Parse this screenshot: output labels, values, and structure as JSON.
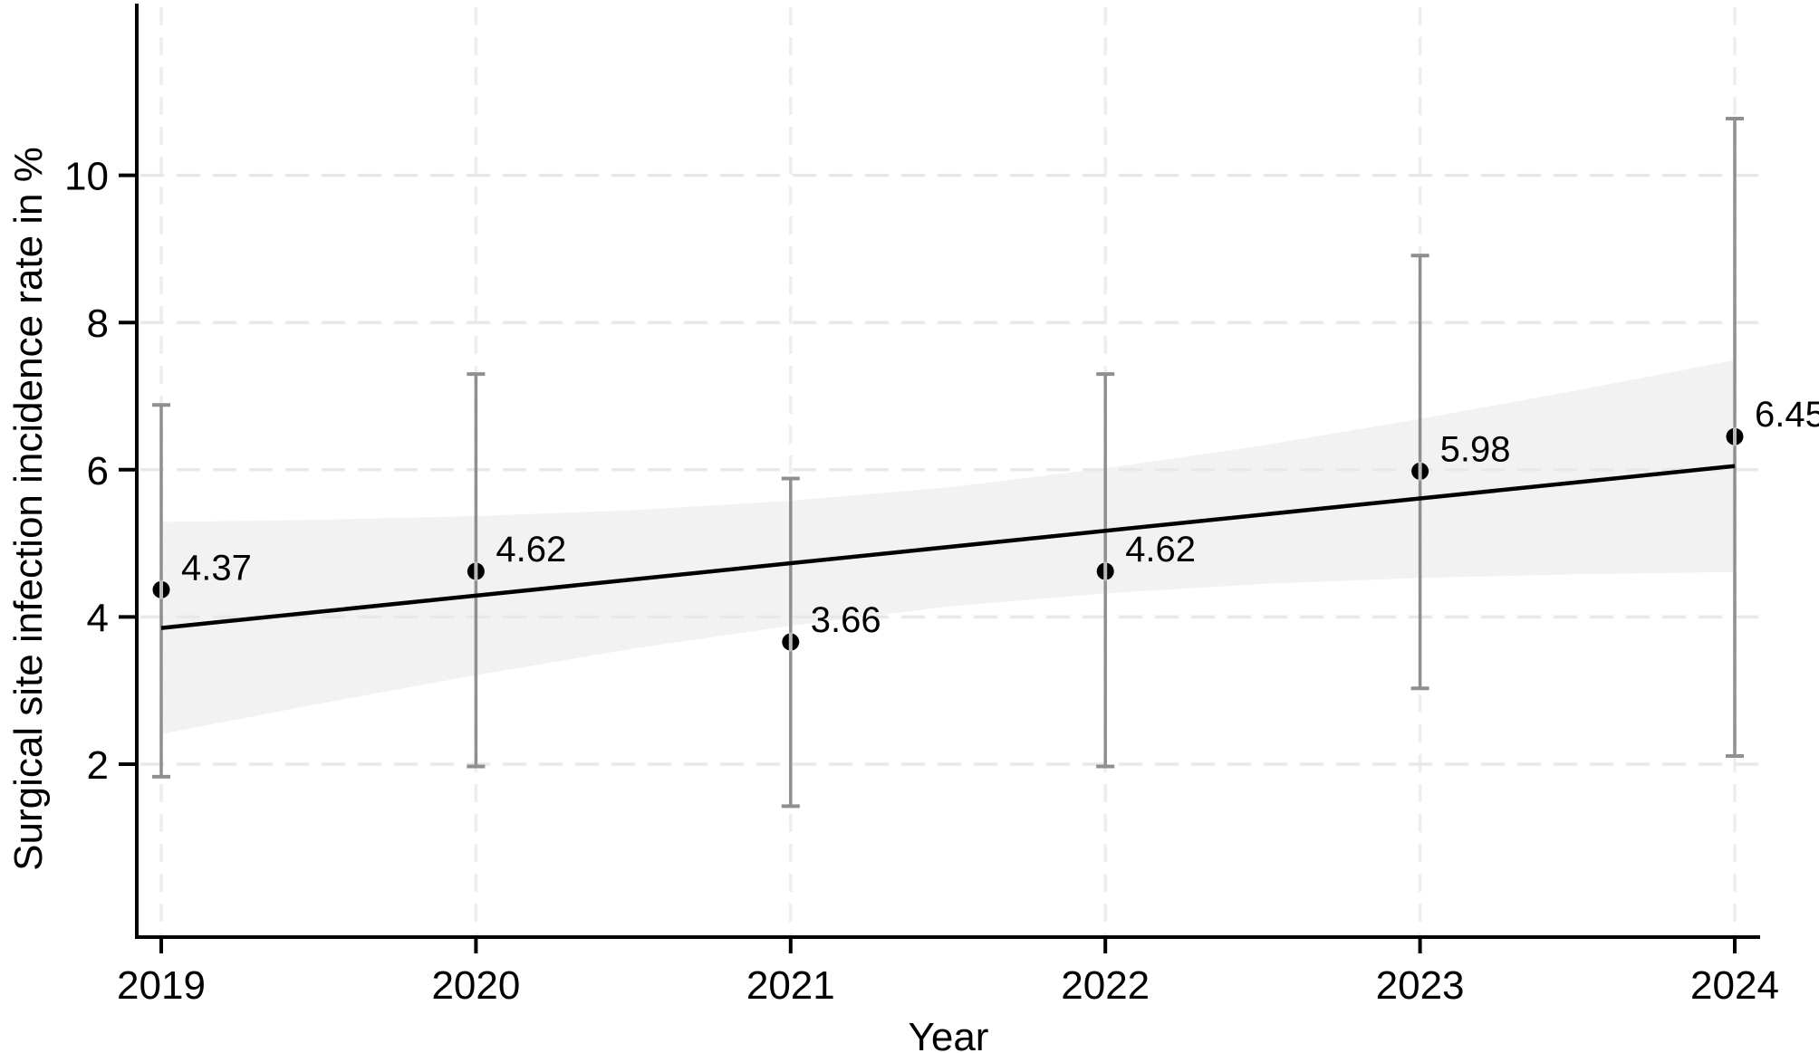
{
  "colors": {
    "background": "#ffffff",
    "axis": "#000000",
    "grid_horizontal": "#e8e8e8",
    "grid_vertical": "#eeeeee",
    "confidence_band": "#f2f2f2",
    "error_bar": "#8f8f8f",
    "trend_line": "#000000",
    "marker": "#000000",
    "text": "#000000"
  },
  "chart_data": {
    "type": "scatter",
    "title": "",
    "xlabel": "Year",
    "ylabel": "Surgical site infection incidence rate in %",
    "x_tick_labels": [
      "2019",
      "2020",
      "2021",
      "2022",
      "2023",
      "2024"
    ],
    "x_tick_values": [
      2019,
      2020,
      2021,
      2022,
      2023,
      2024
    ],
    "y_tick_labels": [
      "2",
      "4",
      "6",
      "8",
      "10"
    ],
    "y_tick_values": [
      2,
      4,
      6,
      8,
      10
    ],
    "xlim": [
      2018.92,
      2024.08
    ],
    "ylim": [
      -0.35,
      12.3
    ],
    "grid": "dashed",
    "legend": "none",
    "points": [
      {
        "year": 2019,
        "value": 4.37,
        "label": "4.37",
        "ci_low": 1.83,
        "ci_high": 6.88
      },
      {
        "year": 2020,
        "value": 4.62,
        "label": "4.62",
        "ci_low": 1.97,
        "ci_high": 7.3
      },
      {
        "year": 2021,
        "value": 3.66,
        "label": "3.66",
        "ci_low": 1.43,
        "ci_high": 5.88
      },
      {
        "year": 2022,
        "value": 4.62,
        "label": "4.62",
        "ci_low": 1.97,
        "ci_high": 7.3
      },
      {
        "year": 2023,
        "value": 5.98,
        "label": "5.98",
        "ci_low": 3.03,
        "ci_high": 8.91
      },
      {
        "year": 2024,
        "value": 6.45,
        "label": "6.45",
        "ci_low": 2.11,
        "ci_high": 10.77
      }
    ],
    "trend_line": {
      "x": [
        2019,
        2024
      ],
      "y": [
        3.85,
        6.05
      ]
    },
    "confidence_band": {
      "x": [
        2019,
        2019.5,
        2020,
        2020.5,
        2021,
        2021.5,
        2022,
        2022.5,
        2023,
        2023.5,
        2024
      ],
      "upper": [
        5.29,
        5.32,
        5.37,
        5.45,
        5.58,
        5.76,
        6.02,
        6.33,
        6.69,
        7.08,
        7.49
      ],
      "lower": [
        2.41,
        2.82,
        3.21,
        3.57,
        3.88,
        4.14,
        4.32,
        4.45,
        4.53,
        4.58,
        4.61
      ]
    }
  }
}
